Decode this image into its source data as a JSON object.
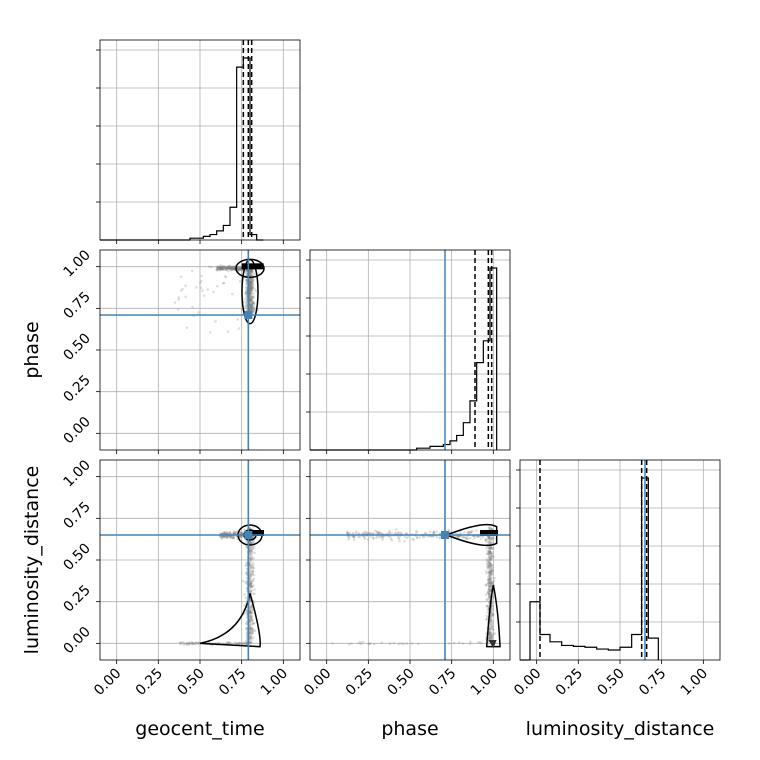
{
  "chart_data": {
    "type": "corner",
    "parameters": [
      "geocent_time",
      "phase",
      "luminosity_distance"
    ],
    "axis_labels": [
      "geocent_time",
      "phase",
      "luminosity_distance"
    ],
    "tick_labels": [
      "0.00",
      "0.25",
      "0.50",
      "0.75",
      "1.00"
    ],
    "range": [
      -0.1,
      1.1
    ],
    "grid": true,
    "truths": {
      "geocent_time": 0.79,
      "phase": 0.71,
      "luminosity_distance": 0.65
    },
    "colors": {
      "truth": "#4682b4",
      "hist": "#000000",
      "points": "#808080",
      "contour": "#000000"
    },
    "histograms": {
      "geocent_time": {
        "bin_edges": [
          0.44,
          0.48,
          0.52,
          0.56,
          0.6,
          0.64,
          0.68,
          0.72,
          0.76,
          0.8,
          0.84,
          0.88
        ],
        "counts": [
          0.01,
          0.01,
          0.02,
          0.03,
          0.05,
          0.08,
          0.18,
          0.95,
          1.0,
          0.03,
          0.0
        ],
        "quantiles": [
          0.76,
          0.79,
          0.81
        ]
      },
      "phase": {
        "bin_edges": [
          0.5,
          0.54,
          0.58,
          0.62,
          0.66,
          0.7,
          0.74,
          0.78,
          0.82,
          0.86,
          0.9,
          0.94,
          0.98,
          1.02
        ],
        "counts": [
          0.0,
          0.01,
          0.01,
          0.02,
          0.02,
          0.03,
          0.05,
          0.08,
          0.15,
          0.27,
          0.48,
          0.6,
          1.0
        ],
        "quantiles": [
          0.89,
          0.97,
          0.99
        ]
      },
      "luminosity_distance": {
        "bin_edges": [
          -0.04,
          0.02,
          0.08,
          0.15,
          0.22,
          0.29,
          0.36,
          0.43,
          0.5,
          0.57,
          0.63,
          0.67,
          0.73
        ],
        "counts": [
          0.32,
          0.14,
          0.1,
          0.08,
          0.075,
          0.07,
          0.06,
          0.055,
          0.07,
          0.14,
          1.0,
          0.12
        ],
        "quantiles": [
          0.02,
          0.63,
          0.66
        ]
      }
    }
  }
}
